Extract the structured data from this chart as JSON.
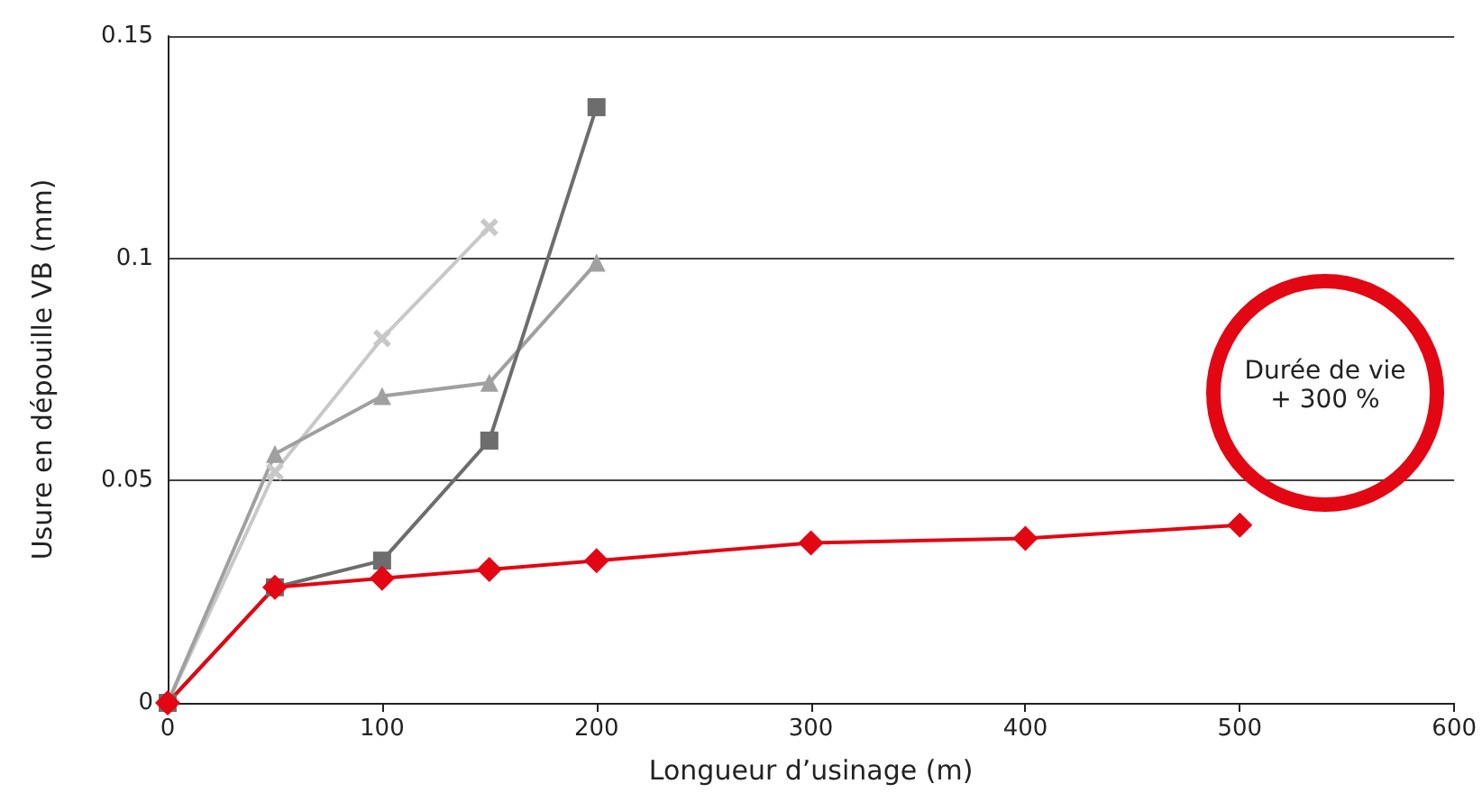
{
  "chart_data": {
    "type": "line",
    "xlabel": "Longueur d’usinage (m)",
    "ylabel": "Usure en dépouille VB (mm)",
    "xlim": [
      0,
      600
    ],
    "xticks": [
      0,
      100,
      200,
      300,
      400,
      500,
      600
    ],
    "ylim": [
      0,
      0.15
    ],
    "yticks": [
      0,
      0.05,
      0.1,
      0.15
    ],
    "grid": "y",
    "line_style": "solid",
    "annotations": [
      "Durée de vie + 300 %"
    ],
    "series": [
      {
        "color": "#c8c8c8",
        "marker": "cross",
        "x": [
          0,
          50,
          100,
          150
        ],
        "values": [
          0,
          0.052,
          0.082,
          0.107
        ]
      },
      {
        "color": "#a0a0a0",
        "marker": "triangle",
        "x": [
          0,
          50,
          100,
          150,
          200
        ],
        "values": [
          0,
          0.056,
          0.069,
          0.072,
          0.099
        ]
      },
      {
        "color": "#6d6d6d",
        "marker": "square",
        "x": [
          0,
          50,
          100,
          150,
          200
        ],
        "values": [
          0,
          0.026,
          0.032,
          0.059,
          0.134
        ]
      },
      {
        "color": "#e30613",
        "marker": "diamond",
        "x": [
          0,
          50,
          100,
          150,
          200,
          300,
          400,
          500
        ],
        "values": [
          0,
          0.026,
          0.028,
          0.03,
          0.032,
          0.036,
          0.037,
          0.04
        ]
      }
    ]
  }
}
